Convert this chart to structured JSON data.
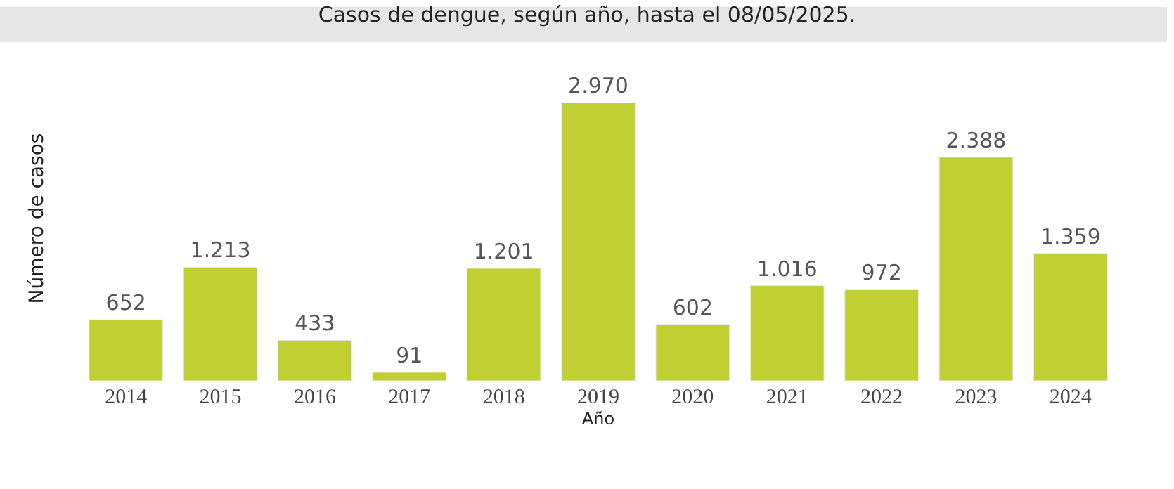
{
  "chart_data": {
    "type": "bar",
    "title": "Casos de dengue, según año, hasta el 08/05/2025.",
    "xlabel": "Año",
    "ylabel": "Número de casos",
    "categories": [
      "2014",
      "2015",
      "2016",
      "2017",
      "2018",
      "2019",
      "2020",
      "2021",
      "2022",
      "2023",
      "2024"
    ],
    "values": [
      652,
      1213,
      433,
      91,
      1201,
      2970,
      602,
      1016,
      972,
      2388,
      1359
    ],
    "value_labels": [
      "652",
      "1.213",
      "433",
      "91",
      "1.201",
      "2.970",
      "602",
      "1.016",
      "972",
      "2.388",
      "1.359"
    ],
    "color": "#c0d032",
    "tick_labels": "x"
  }
}
